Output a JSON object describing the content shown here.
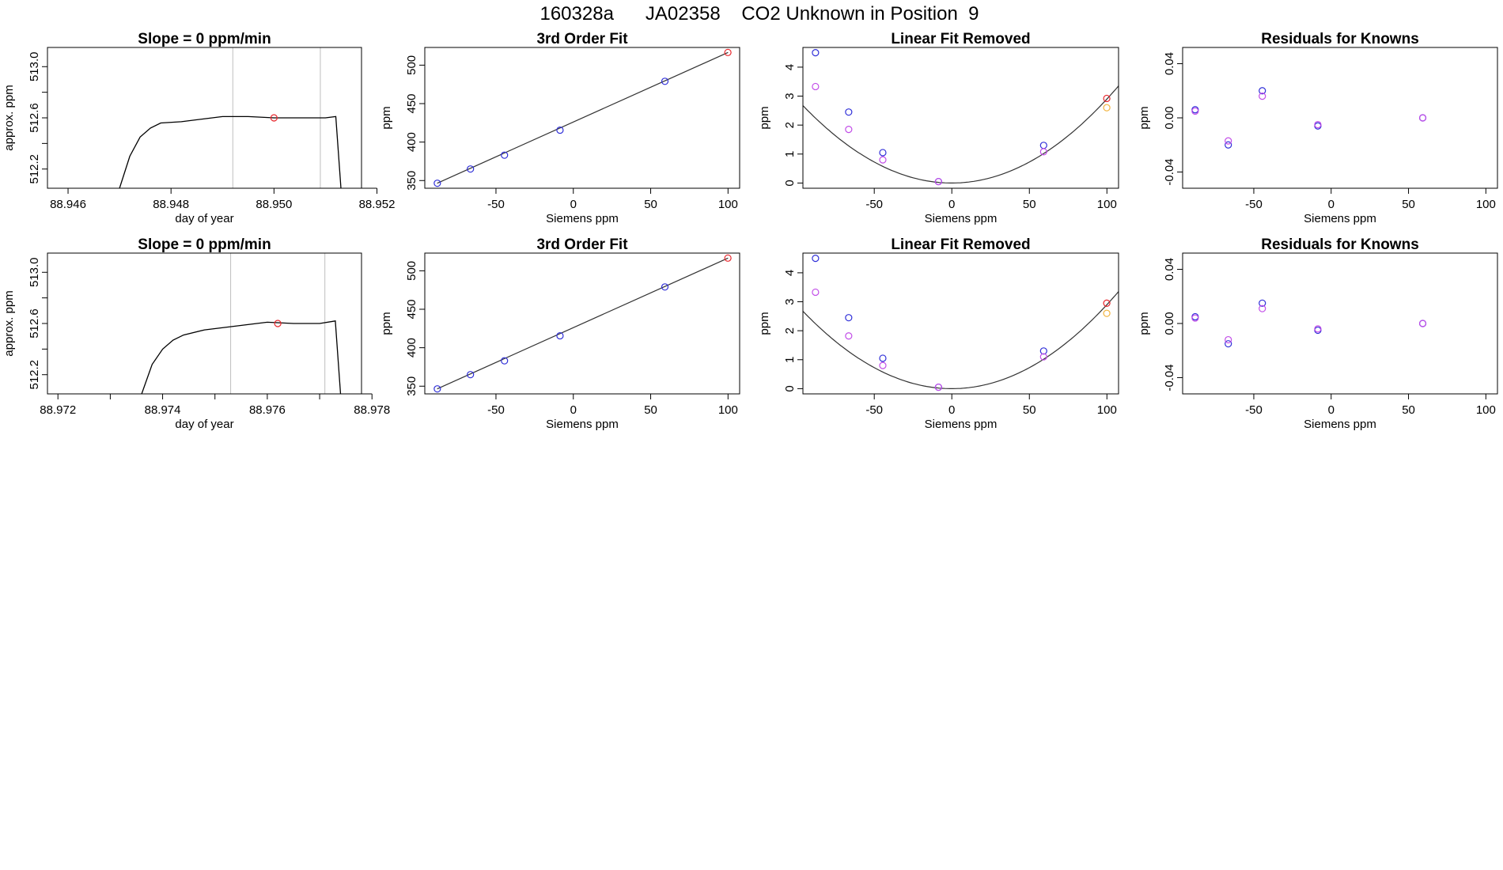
{
  "figure_title": "160328a      JA02358    CO2 Unknown in Position  9",
  "colors": {
    "line": "#000000",
    "red": "#e8262c",
    "blue": "#2f2fd8",
    "magenta": "#c24de8",
    "orange": "#f2b33d",
    "vline": "#bebebe",
    "fit": "#333333"
  },
  "chart_data": [
    {
      "type": "line",
      "title": "Slope =  0  ppm/min",
      "xlabel": "day of year",
      "ylabel": "approx. ppm",
      "xlim": [
        88.9456,
        88.9517
      ],
      "ylim": [
        512.05,
        513.15
      ],
      "xticks": [
        88.946,
        88.948,
        88.95,
        88.952
      ],
      "xtick_labels": [
        "88.946",
        "88.948",
        "88.950",
        "88.952"
      ],
      "yticks": [
        512.2,
        512.6,
        513.0
      ],
      "ytick_labels": [
        "512.2",
        "512.6",
        "513.0"
      ],
      "extra_yticks": [
        512.4,
        512.8
      ],
      "vlines": [
        88.9492,
        88.9509
      ],
      "marker": {
        "x": 88.95,
        "y": 512.6,
        "color": "red"
      },
      "series": [
        {
          "name": "trace",
          "x": [
            88.947,
            88.9472,
            88.9474,
            88.9476,
            88.9478,
            88.9482,
            88.9486,
            88.949,
            88.9495,
            88.95,
            88.9505,
            88.951,
            88.9512,
            88.9513
          ],
          "y": [
            512.05,
            512.3,
            512.45,
            512.52,
            512.56,
            512.57,
            512.59,
            512.61,
            512.61,
            512.6,
            512.6,
            512.6,
            512.61,
            512.05
          ]
        }
      ]
    },
    {
      "type": "scatter",
      "title": "3rd Order Fit",
      "xlabel": "Siemens ppm",
      "ylabel": "ppm",
      "xlim": [
        -96.0,
        107.5
      ],
      "ylim": [
        340,
        523
      ],
      "xticks": [
        -50,
        0,
        50,
        100
      ],
      "xtick_labels": [
        "-50",
        "0",
        "50",
        "100"
      ],
      "yticks": [
        350,
        400,
        450,
        500
      ],
      "ytick_labels": [
        "350",
        "400",
        "450",
        "500"
      ],
      "fit_line": {
        "x": [
          -88,
          100
        ],
        "y": [
          346.5,
          516.5
        ]
      },
      "series": [
        {
          "name": "known",
          "color": "blue",
          "x": [
            -87.9,
            -66.5,
            -44.5,
            -8.6,
            59.2
          ],
          "y": [
            346.5,
            365.0,
            383.0,
            415.5,
            479.0
          ]
        },
        {
          "name": "unknown",
          "color": "red",
          "x": [
            99.9
          ],
          "y": [
            516.5
          ]
        }
      ]
    },
    {
      "type": "scatter",
      "title": "Linear Fit Removed",
      "xlabel": "Siemens ppm",
      "ylabel": "ppm",
      "xlim": [
        -96.0,
        107.5
      ],
      "ylim": [
        -0.18,
        4.68
      ],
      "xticks": [
        -50,
        0,
        50,
        100
      ],
      "xtick_labels": [
        "-50",
        "0",
        "50",
        "100"
      ],
      "yticks": [
        0,
        1,
        2,
        3,
        4
      ],
      "ytick_labels": [
        "0",
        "1",
        "2",
        "3",
        "4"
      ],
      "fit_curve": {
        "type": "quadratic",
        "vertex_x": 0,
        "vertex_y": 0,
        "through_x": 100,
        "through_y": 2.9
      },
      "series": [
        {
          "name": "known-blue",
          "color": "blue",
          "x": [
            -87.9,
            -66.5,
            -44.5,
            -8.6,
            59.2
          ],
          "y": [
            4.5,
            2.45,
            1.05,
            0.05,
            1.3
          ]
        },
        {
          "name": "known-magenta",
          "color": "magenta",
          "x": [
            -87.9,
            -66.5,
            -44.5,
            -8.6,
            59.2
          ],
          "y": [
            3.33,
            1.85,
            0.8,
            0.05,
            1.08
          ]
        },
        {
          "name": "unknown",
          "color": "red",
          "x": [
            99.9
          ],
          "y": [
            2.92
          ]
        },
        {
          "name": "unknown-alt",
          "color": "orange",
          "x": [
            99.9
          ],
          "y": [
            2.6
          ]
        }
      ]
    },
    {
      "type": "scatter",
      "title": "Residuals for Knowns",
      "xlabel": "Siemens ppm",
      "ylabel": "ppm",
      "xlim": [
        -96.0,
        107.5
      ],
      "ylim": [
        -0.052,
        0.052
      ],
      "xticks": [
        -50,
        0,
        50,
        100
      ],
      "xtick_labels": [
        "-50",
        "0",
        "50",
        "100"
      ],
      "yticks": [
        -0.04,
        0.0,
        0.04
      ],
      "ytick_labels": [
        "-0.04",
        "0.00",
        "0.04"
      ],
      "series": [
        {
          "name": "blue",
          "color": "blue",
          "x": [
            -87.9,
            -66.5,
            -44.5,
            -8.6,
            59.2
          ],
          "y": [
            0.006,
            -0.02,
            0.02,
            -0.006,
            0.0
          ]
        },
        {
          "name": "magenta",
          "color": "magenta",
          "x": [
            -87.9,
            -66.5,
            -44.5,
            -8.6,
            59.2
          ],
          "y": [
            0.005,
            -0.017,
            0.016,
            -0.005,
            0.0
          ]
        }
      ]
    },
    {
      "type": "line",
      "title": "Slope =  0  ppm/min",
      "xlabel": "day of year",
      "ylabel": "approx. ppm",
      "xlim": [
        88.9718,
        88.9778
      ],
      "ylim": [
        512.05,
        513.15
      ],
      "xticks": [
        88.972,
        88.974,
        88.976,
        88.978
      ],
      "xtick_labels": [
        "88.972",
        "88.974",
        "88.976",
        "88.978"
      ],
      "extra_xticks": [
        88.973,
        88.975,
        88.977
      ],
      "yticks": [
        512.2,
        512.6,
        513.0
      ],
      "ytick_labels": [
        "512.2",
        "512.6",
        "513.0"
      ],
      "extra_yticks": [
        512.4,
        512.8
      ],
      "vlines": [
        88.9753,
        88.9771
      ],
      "marker": {
        "x": 88.9762,
        "y": 512.6,
        "color": "red"
      },
      "series": [
        {
          "name": "trace",
          "x": [
            88.9736,
            88.9738,
            88.974,
            88.9742,
            88.9744,
            88.9748,
            88.9752,
            88.9756,
            88.976,
            88.9765,
            88.977,
            88.9773,
            88.9774
          ],
          "y": [
            512.05,
            512.28,
            512.4,
            512.47,
            512.51,
            512.55,
            512.57,
            512.59,
            512.61,
            512.6,
            512.6,
            512.62,
            512.05
          ]
        }
      ]
    },
    {
      "type": "scatter",
      "title": "3rd Order Fit",
      "xlabel": "Siemens ppm",
      "ylabel": "ppm",
      "xlim": [
        -96.0,
        107.5
      ],
      "ylim": [
        340,
        523
      ],
      "xticks": [
        -50,
        0,
        50,
        100
      ],
      "xtick_labels": [
        "-50",
        "0",
        "50",
        "100"
      ],
      "yticks": [
        350,
        400,
        450,
        500
      ],
      "ytick_labels": [
        "350",
        "400",
        "450",
        "500"
      ],
      "fit_line": {
        "x": [
          -88,
          100
        ],
        "y": [
          346.5,
          516.5
        ]
      },
      "series": [
        {
          "name": "known",
          "color": "blue",
          "x": [
            -87.9,
            -66.5,
            -44.5,
            -8.6,
            59.2
          ],
          "y": [
            346.5,
            365.0,
            383.0,
            415.5,
            479.0
          ]
        },
        {
          "name": "unknown",
          "color": "red",
          "x": [
            99.9
          ],
          "y": [
            516.5
          ]
        }
      ]
    },
    {
      "type": "scatter",
      "title": "Linear Fit Removed",
      "xlabel": "Siemens ppm",
      "ylabel": "ppm",
      "xlim": [
        -96.0,
        107.5
      ],
      "ylim": [
        -0.18,
        4.68
      ],
      "xticks": [
        -50,
        0,
        50,
        100
      ],
      "xtick_labels": [
        "-50",
        "0",
        "50",
        "100"
      ],
      "yticks": [
        0,
        1,
        2,
        3,
        4
      ],
      "ytick_labels": [
        "0",
        "1",
        "2",
        "3",
        "4"
      ],
      "fit_curve": {
        "type": "quadratic",
        "vertex_x": 0,
        "vertex_y": 0,
        "through_x": 100,
        "through_y": 2.9
      },
      "series": [
        {
          "name": "known-blue",
          "color": "blue",
          "x": [
            -87.9,
            -66.5,
            -44.5,
            -8.6,
            59.2
          ],
          "y": [
            4.5,
            2.45,
            1.05,
            0.05,
            1.3
          ]
        },
        {
          "name": "known-magenta",
          "color": "magenta",
          "x": [
            -87.9,
            -66.5,
            -44.5,
            -8.6,
            59.2
          ],
          "y": [
            3.33,
            1.82,
            0.8,
            0.05,
            1.1
          ]
        },
        {
          "name": "unknown",
          "color": "red",
          "x": [
            99.9
          ],
          "y": [
            2.95
          ]
        },
        {
          "name": "unknown-alt",
          "color": "orange",
          "x": [
            99.9
          ],
          "y": [
            2.6
          ]
        }
      ]
    },
    {
      "type": "scatter",
      "title": "Residuals for Knowns",
      "xlabel": "Siemens ppm",
      "ylabel": "ppm",
      "xlim": [
        -96.0,
        107.5
      ],
      "ylim": [
        -0.052,
        0.052
      ],
      "xticks": [
        -50,
        0,
        50,
        100
      ],
      "xtick_labels": [
        "-50",
        "0",
        "50",
        "100"
      ],
      "yticks": [
        -0.04,
        0.0,
        0.04
      ],
      "ytick_labels": [
        "-0.04",
        "0.00",
        "0.04"
      ],
      "series": [
        {
          "name": "blue",
          "color": "blue",
          "x": [
            -87.9,
            -66.5,
            -44.5,
            -8.6,
            59.2
          ],
          "y": [
            0.005,
            -0.015,
            0.015,
            -0.005,
            0.0
          ]
        },
        {
          "name": "magenta",
          "color": "magenta",
          "x": [
            -87.9,
            -66.5,
            -44.5,
            -8.6,
            59.2
          ],
          "y": [
            0.004,
            -0.012,
            0.011,
            -0.004,
            0.0
          ]
        }
      ]
    }
  ]
}
